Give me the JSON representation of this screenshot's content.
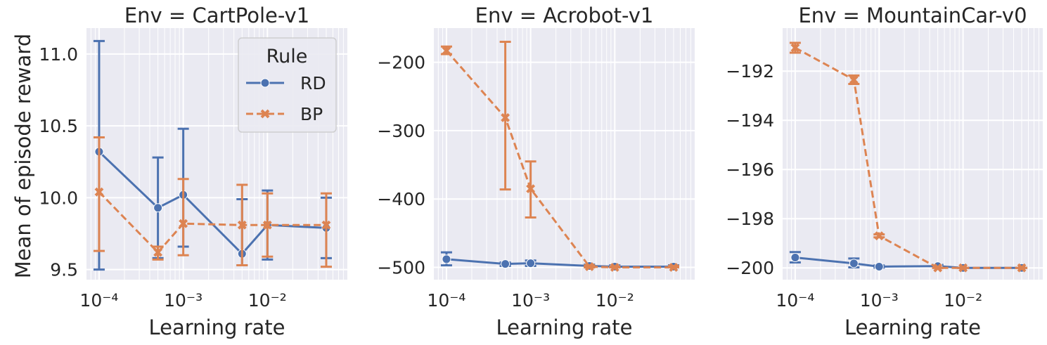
{
  "figure": {
    "xlabel": "Learning rate",
    "ylabel": "Mean of episode reward",
    "legend": {
      "title": "Rule",
      "placement": "top-right of first panel",
      "entries": [
        {
          "name": "RD",
          "marker": "circle",
          "dash": "solid"
        },
        {
          "name": "BP",
          "marker": "x",
          "dash": "dashed"
        }
      ]
    },
    "colors": {
      "RD": "#4c72b0",
      "BP": "#dd8452",
      "panel_bg": "#eaeaf2",
      "grid": "#ffffff"
    }
  },
  "chart_data": [
    {
      "type": "line",
      "title": "Env = CartPole-v1",
      "xscale": "log",
      "x": [
        0.0001,
        0.0005,
        0.001,
        0.005,
        0.01,
        0.05
      ],
      "xticks": [
        {
          "value": 0.0001,
          "label": "10⁻⁴"
        },
        {
          "value": 0.001,
          "label": "10⁻³"
        },
        {
          "value": 0.01,
          "label": "10⁻²"
        }
      ],
      "ylim": [
        9.43,
        11.18
      ],
      "yticks": [
        "9.5",
        "10.0",
        "10.5",
        "11.0"
      ],
      "ytick_values": [
        9.5,
        10.0,
        10.5,
        11.0
      ],
      "grid": true,
      "series": [
        {
          "name": "RD",
          "values": [
            10.32,
            9.93,
            10.02,
            9.61,
            9.81,
            9.79
          ],
          "err_low": [
            9.5,
            9.58,
            9.66,
            9.53,
            9.57,
            9.58
          ],
          "err_high": [
            11.09,
            10.28,
            10.48,
            9.99,
            10.05,
            10.0
          ]
        },
        {
          "name": "BP",
          "values": [
            10.04,
            9.62,
            9.82,
            9.81,
            9.81,
            9.81
          ],
          "err_low": [
            9.63,
            9.57,
            9.6,
            9.53,
            9.59,
            9.52
          ],
          "err_high": [
            10.42,
            9.66,
            10.13,
            10.09,
            10.03,
            10.03
          ]
        }
      ]
    },
    {
      "type": "line",
      "title": "Env = Acrobot-v1",
      "xscale": "log",
      "x": [
        0.0001,
        0.0005,
        0.001,
        0.005,
        0.01,
        0.05
      ],
      "xticks": [
        {
          "value": 0.0001,
          "label": "10⁻⁴"
        },
        {
          "value": 0.001,
          "label": "10⁻³"
        },
        {
          "value": 0.01,
          "label": "10⁻²"
        }
      ],
      "ylim": [
        -518,
        -150
      ],
      "yticks": [
        "−500",
        "−400",
        "−300",
        "−200"
      ],
      "ytick_values": [
        -500,
        -400,
        -300,
        -200
      ],
      "grid": true,
      "series": [
        {
          "name": "RD",
          "values": [
            -488,
            -495,
            -494,
            -498,
            -499,
            -499
          ],
          "err_low": [
            -497,
            -498,
            -498,
            -500,
            -500,
            -500
          ],
          "err_high": [
            -478,
            -493,
            -490,
            -496,
            -497,
            -497
          ]
        },
        {
          "name": "BP",
          "values": [
            -183,
            -281,
            -385,
            -499,
            -500,
            -500
          ],
          "err_low": [
            -188,
            -386,
            -427,
            -500,
            -500,
            -500
          ],
          "err_high": [
            -177,
            -170,
            -345,
            -497,
            -499,
            -498
          ]
        }
      ]
    },
    {
      "type": "line",
      "title": "Env = MountainCar-v0",
      "xscale": "log",
      "x": [
        0.0001,
        0.0005,
        0.001,
        0.005,
        0.01,
        0.05
      ],
      "xticks": [
        {
          "value": 0.0001,
          "label": "10⁻⁴"
        },
        {
          "value": 0.001,
          "label": "10⁻³"
        },
        {
          "value": 0.01,
          "label": "10⁻²"
        }
      ],
      "ylim": [
        -200.48,
        -190.25
      ],
      "yticks": [
        "−200",
        "−198",
        "−196",
        "−194",
        "−192"
      ],
      "ytick_values": [
        -200,
        -198,
        -196,
        -194,
        -192
      ],
      "grid": true,
      "series": [
        {
          "name": "RD",
          "values": [
            -199.58,
            -199.82,
            -199.95,
            -199.93,
            -200.0,
            -200.0
          ],
          "err_low": [
            -199.78,
            -199.98,
            -199.99,
            -199.98,
            -200.0,
            -200.0
          ],
          "err_high": [
            -199.36,
            -199.62,
            -199.9,
            -199.88,
            -200.0,
            -200.0
          ]
        },
        {
          "name": "BP",
          "values": [
            -191.05,
            -192.35,
            -198.7,
            -200.0,
            -200.0,
            -200.0
          ],
          "err_low": [
            -191.25,
            -192.52,
            -198.76,
            -200.0,
            -200.0,
            -200.0
          ],
          "err_high": [
            -190.85,
            -192.18,
            -198.64,
            -200.0,
            -200.0,
            -200.0
          ]
        }
      ]
    }
  ]
}
